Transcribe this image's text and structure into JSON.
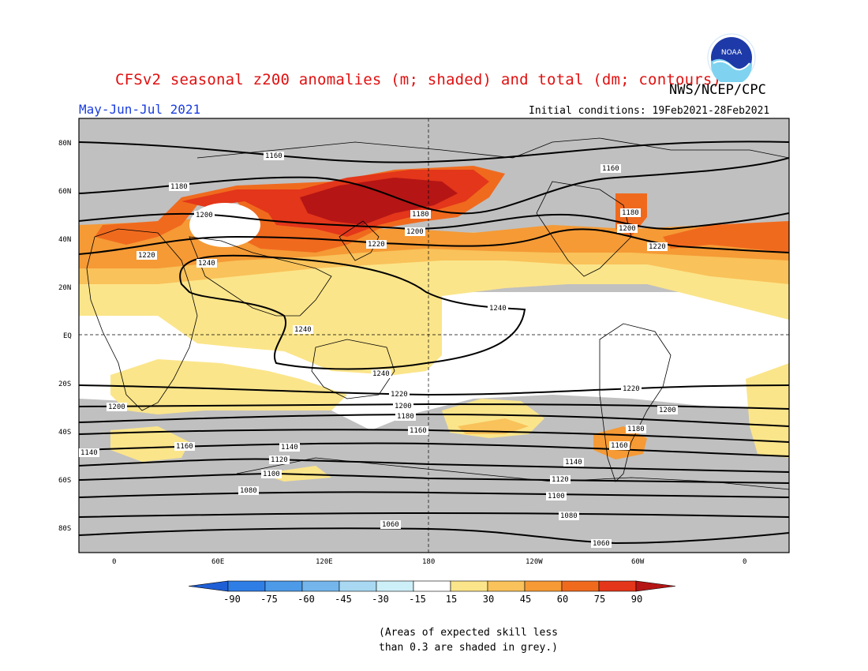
{
  "header": {
    "title": "CFSv2 seasonal z200 anomalies (m; shaded) and total (dm; contours)",
    "agency": "NWS/NCEP/CPC",
    "period": "May-Jun-Jul 2021",
    "initial_conditions": "Initial conditions: 19Feb2021-28Feb2021",
    "logo_text": "NOAA"
  },
  "map": {
    "lat_labels": [
      "80N",
      "60N",
      "40N",
      "20N",
      "EQ",
      "20S",
      "40S",
      "60S",
      "80S"
    ],
    "lon_labels": [
      "0",
      "60E",
      "120E",
      "180",
      "120W",
      "60W",
      "0"
    ],
    "contour_labels": [
      "1160",
      "1160",
      "1180",
      "1200",
      "1220",
      "1240",
      "1180",
      "1200",
      "1220",
      "1180",
      "1200",
      "1220",
      "1240",
      "1240",
      "1240",
      "1200",
      "1220",
      "1200",
      "1180",
      "1160",
      "1220",
      "1200",
      "1180",
      "1160",
      "1140",
      "1160",
      "1140",
      "1120",
      "1100",
      "1080",
      "1140",
      "1120",
      "1100",
      "1080",
      "1060",
      "1060"
    ]
  },
  "colorbar": {
    "labels": [
      "-90",
      "-75",
      "-60",
      "-45",
      "-30",
      "-15",
      "15",
      "30",
      "45",
      "60",
      "75",
      "90"
    ],
    "colors": [
      "#1f5fd6",
      "#2e7ee6",
      "#4d9ae8",
      "#74b6ec",
      "#a8d8f2",
      "#cdeff8",
      "#ffffff",
      "#fbe58a",
      "#f9c25a",
      "#f59a35",
      "#f06a1e",
      "#e3361a",
      "#b51515"
    ]
  },
  "note": {
    "line1": "(Areas of expected skill less",
    "line2": "than 0.3 are shaded in grey.)"
  }
}
